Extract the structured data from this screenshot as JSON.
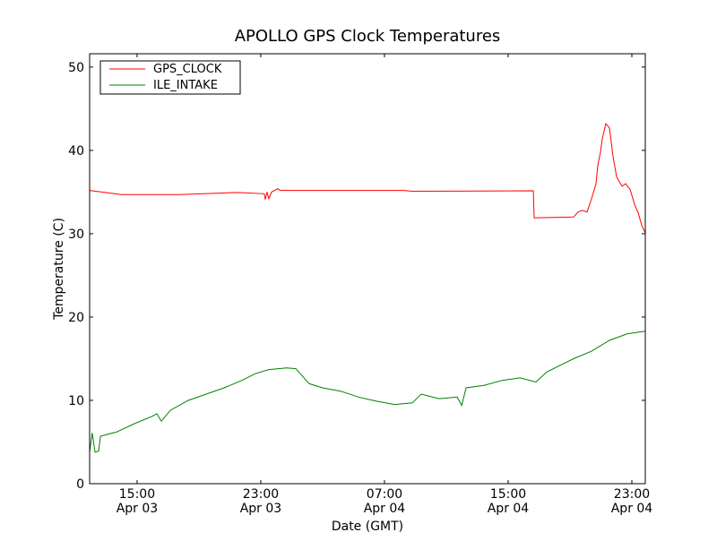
{
  "chart_data": {
    "type": "line",
    "title": "APOLLO GPS Clock Temperatures",
    "xlabel": "Date (GMT)",
    "ylabel": "Temperature (C)",
    "x_units": "hours since Apr 03 00:00 GMT",
    "xlim": [
      11.93,
      47.87
    ],
    "ylim": [
      0,
      51.6
    ],
    "grid": false,
    "legend_position": "top-left",
    "yticks": [
      0,
      10,
      20,
      30,
      40,
      50
    ],
    "xticks": [
      {
        "value": 15,
        "time": "15:00",
        "date": "Apr 03"
      },
      {
        "value": 23,
        "time": "23:00",
        "date": "Apr 03"
      },
      {
        "value": 31,
        "time": "07:00",
        "date": "Apr 04"
      },
      {
        "value": 39,
        "time": "15:00",
        "date": "Apr 04"
      },
      {
        "value": 47,
        "time": "23:00",
        "date": "Apr 04"
      }
    ],
    "series": [
      {
        "name": "GPS_CLOCK",
        "color": "#ff0000",
        "x": [
          11.93,
          13.96,
          17.73,
          21.5,
          23.23,
          23.29,
          23.41,
          23.52,
          23.7,
          24.1,
          24.28,
          32.22,
          32.8,
          40.63,
          40.68,
          43.23,
          43.52,
          43.81,
          44.1,
          44.39,
          44.68,
          44.8,
          44.97,
          45.09,
          45.32,
          45.55,
          45.79,
          46.02,
          46.36,
          46.6,
          46.89,
          47.18,
          47.41,
          47.64,
          47.87
        ],
        "y": [
          35.2,
          34.7,
          34.7,
          34.95,
          34.8,
          34.1,
          35.0,
          34.2,
          35.0,
          35.4,
          35.2,
          35.2,
          35.1,
          35.15,
          31.9,
          32.0,
          32.6,
          32.8,
          32.6,
          34.2,
          36.0,
          38.2,
          39.8,
          41.4,
          43.2,
          42.7,
          39.2,
          36.8,
          35.7,
          36.0,
          35.3,
          33.5,
          32.5,
          31.0,
          30.1
        ]
      },
      {
        "name": "ILE_INTAKE",
        "color": "#008000",
        "x": [
          11.93,
          12.1,
          12.28,
          12.51,
          12.63,
          13.67,
          14.83,
          15.99,
          16.28,
          16.57,
          17.15,
          18.31,
          19.47,
          20.63,
          21.78,
          22.65,
          23.52,
          24.68,
          25.26,
          26.13,
          27.0,
          28.16,
          29.32,
          30.48,
          31.64,
          32.8,
          33.38,
          34.54,
          35.7,
          35.99,
          36.28,
          37.44,
          38.6,
          39.76,
          40.8,
          41.5,
          43.23,
          44.39,
          45.55,
          46.71,
          47.87
        ],
        "y": [
          3.8,
          6.1,
          3.8,
          3.9,
          5.7,
          6.2,
          7.2,
          8.1,
          8.4,
          7.5,
          8.8,
          10.0,
          10.75,
          11.5,
          12.4,
          13.2,
          13.7,
          13.9,
          13.8,
          12.0,
          11.5,
          11.1,
          10.4,
          9.9,
          9.5,
          9.7,
          10.75,
          10.2,
          10.4,
          9.4,
          11.5,
          11.8,
          12.4,
          12.7,
          12.2,
          13.4,
          15.0,
          15.9,
          17.2,
          18.0,
          18.3
        ]
      }
    ]
  }
}
